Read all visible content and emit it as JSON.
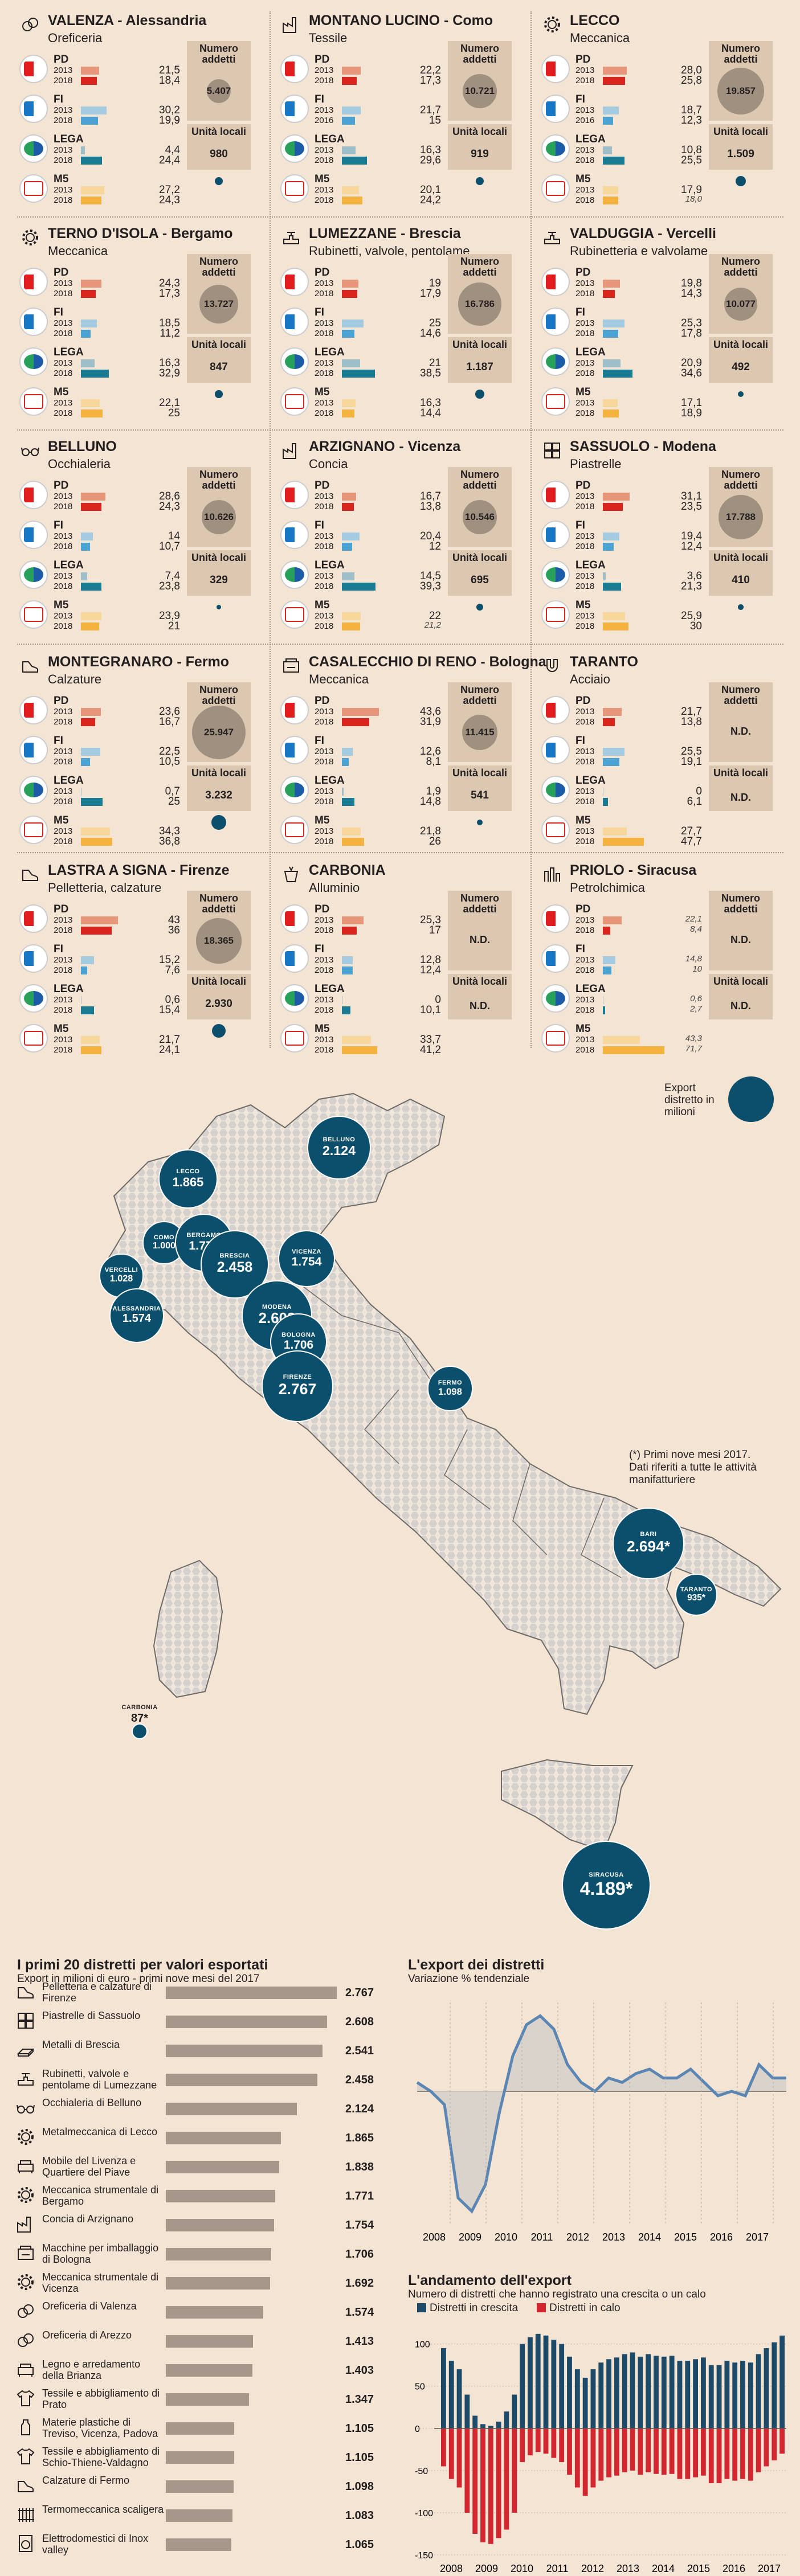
{
  "party_names": {
    "pd": "PD",
    "fi": "FI",
    "lega": "LEGA",
    "ms": "M5"
  },
  "years": [
    "2013",
    "2018"
  ],
  "side_labels": {
    "addetti": "Numero addetti",
    "unita": "Unità locali",
    "nd": "N.D."
  },
  "colors": {
    "pd13": "#e8967a",
    "pd18": "#d9251d",
    "fi13": "#a4cbe0",
    "fi18": "#4aa3d3",
    "lega13": "#9ebfc9",
    "lega18": "#1a7c93",
    "ms13": "#f7d79a",
    "ms18": "#f4b23e",
    "circle": "#a0907f",
    "blue": "#0b4f6c"
  },
  "districts": [
    {
      "icon": "rings-icon",
      "title": "VALENZA - Alessandria",
      "sector": "Oreficeria",
      "pd": [
        "21,5",
        "18,4"
      ],
      "fi": [
        "30,2",
        "19,9"
      ],
      "lega": [
        "4,4",
        "24,4"
      ],
      "ms": [
        "27,2",
        "24,3"
      ],
      "fiy": [
        "2013",
        "2018"
      ],
      "addetti": "5.407",
      "unita": "980",
      "small": []
    },
    {
      "icon": "factory-icon",
      "title": "MONTANO LUCINO - Como",
      "sector": "Tessile",
      "pd": [
        "22,2",
        "17,3"
      ],
      "fi": [
        "21,7",
        "15"
      ],
      "lega": [
        "16,3",
        "29,6"
      ],
      "ms": [
        "20,1",
        "24,2"
      ],
      "fiy": [
        "2013",
        "2016"
      ],
      "addetti": "10.721",
      "unita": "919",
      "small": []
    },
    {
      "icon": "gear-icon",
      "title": "LECCO",
      "sector": "Meccanica",
      "pd": [
        "28,0",
        "25,8"
      ],
      "fi": [
        "18,7",
        "12,3"
      ],
      "lega": [
        "10,8",
        "25,5"
      ],
      "ms": [
        "17,9",
        "18,0"
      ],
      "fiy": [
        "2013",
        "2016"
      ],
      "addetti": "19.857",
      "unita": "1.509",
      "small": [
        "ms18"
      ]
    },
    {
      "icon": "gear-icon",
      "title": "TERNO D'ISOLA - Bergamo",
      "sector": "Meccanica",
      "pd": [
        "24,3",
        "17,3"
      ],
      "fi": [
        "18,5",
        "11,2"
      ],
      "lega": [
        "16,3",
        "32,9"
      ],
      "ms": [
        "22,1",
        "25"
      ],
      "fiy": [
        "2013",
        "2018"
      ],
      "addetti": "13.727",
      "unita": "847",
      "small": []
    },
    {
      "icon": "valve-icon",
      "title": "LUMEZZANE - Brescia",
      "sector": "Rubinetti, valvole, pentolame",
      "pd": [
        "19",
        "17,9"
      ],
      "fi": [
        "25",
        "14,6"
      ],
      "lega": [
        "21",
        "38,5"
      ],
      "ms": [
        "16,3",
        "14,4"
      ],
      "fiy": [
        "2013",
        "2018"
      ],
      "addetti": "16.786",
      "unita": "1.187",
      "small": []
    },
    {
      "icon": "valve-icon",
      "title": "VALDUGGIA - Vercelli",
      "sector": "Rubinetteria e valvolame",
      "pd": [
        "19,8",
        "14,3"
      ],
      "fi": [
        "25,3",
        "17,8"
      ],
      "lega": [
        "20,9",
        "34,6"
      ],
      "ms": [
        "17,1",
        "18,9"
      ],
      "fiy": [
        "2013",
        "2018"
      ],
      "addetti": "10.077",
      "unita": "492",
      "small": []
    },
    {
      "icon": "glasses-icon",
      "title": "BELLUNO",
      "sector": "Occhialeria",
      "pd": [
        "28,6",
        "24,3"
      ],
      "fi": [
        "14",
        "10,7"
      ],
      "lega": [
        "7,4",
        "23,8"
      ],
      "ms": [
        "23,9",
        "21"
      ],
      "fiy": [
        "2013",
        "2018"
      ],
      "addetti": "10.626",
      "unita": "329",
      "small": []
    },
    {
      "icon": "factory-icon",
      "title": "ARZIGNANO - Vicenza",
      "sector": "Concia",
      "pd": [
        "16,7",
        "13,8"
      ],
      "fi": [
        "20,4",
        "12"
      ],
      "lega": [
        "14,5",
        "39,3"
      ],
      "ms": [
        "22",
        "21,2"
      ],
      "fiy": [
        "2013",
        "2018"
      ],
      "addetti": "10.546",
      "unita": "695",
      "small": [
        "ms18"
      ]
    },
    {
      "icon": "tile-icon",
      "title": "SASSUOLO - Modena",
      "sector": "Piastrelle",
      "pd": [
        "31,1",
        "23,5"
      ],
      "fi": [
        "19,4",
        "12,4"
      ],
      "lega": [
        "3,6",
        "21,3"
      ],
      "ms": [
        "25,9",
        "30"
      ],
      "fiy": [
        "2013",
        "2018"
      ],
      "addetti": "17.788",
      "unita": "410",
      "small": []
    },
    {
      "icon": "shoe-icon",
      "title": "MONTEGRANARO - Fermo",
      "sector": "Calzature",
      "pd": [
        "23,6",
        "16,7"
      ],
      "fi": [
        "22,5",
        "10,5"
      ],
      "lega": [
        "0,7",
        "25"
      ],
      "ms": [
        "34,3",
        "36,8"
      ],
      "fiy": [
        "2013",
        "2018"
      ],
      "addetti": "25.947",
      "unita": "3.232",
      "small": []
    },
    {
      "icon": "machine-icon",
      "title": "CASALECCHIO DI RENO - Bologna",
      "sector": "Meccanica",
      "pd": [
        "43,6",
        "31,9"
      ],
      "fi": [
        "12,6",
        "8,1"
      ],
      "lega": [
        "1,9",
        "14,8"
      ],
      "ms": [
        "21,8",
        "26"
      ],
      "fiy": [
        "2013",
        "2018"
      ],
      "addetti": "11.415",
      "unita": "541",
      "small": []
    },
    {
      "icon": "magnet-icon",
      "title": "TARANTO",
      "sector": "Acciaio",
      "pd": [
        "21,7",
        "13,8"
      ],
      "fi": [
        "25,5",
        "19,1"
      ],
      "lega": [
        "0",
        "6,1"
      ],
      "ms": [
        "27,7",
        "47,7"
      ],
      "fiy": [
        "2013",
        "2018"
      ],
      "addetti": "",
      "unita": "",
      "small": []
    },
    {
      "icon": "shoe-icon",
      "title": "LASTRA A SIGNA - Firenze",
      "sector": "Pelletteria, calzature",
      "pd": [
        "43",
        "36"
      ],
      "fi": [
        "15,2",
        "7,6"
      ],
      "lega": [
        "0,6",
        "15,4"
      ],
      "ms": [
        "21,7",
        "24,1"
      ],
      "fiy": [
        "2013",
        "2018"
      ],
      "addetti": "18.365",
      "unita": "2.930",
      "small": []
    },
    {
      "icon": "crucible-icon",
      "title": "CARBONIA",
      "sector": "Alluminio",
      "pd": [
        "25,3",
        "17"
      ],
      "fi": [
        "12,8",
        "12,4"
      ],
      "lega": [
        "0",
        "10,1"
      ],
      "ms": [
        "33,7",
        "41,2"
      ],
      "fiy": [
        "2013",
        "2018"
      ],
      "addetti": "",
      "unita": "",
      "small": []
    },
    {
      "icon": "refinery-icon",
      "title": "PRIOLO - Siracusa",
      "sector": "Petrolchimica",
      "pd": [
        "22,1",
        "8,4"
      ],
      "fi": [
        "14,8",
        "10"
      ],
      "lega": [
        "0,6",
        "2,7"
      ],
      "ms": [
        "43,3",
        "71,7"
      ],
      "fiy": [
        "2013",
        "2018"
      ],
      "addetti": "",
      "unita": "",
      "small": [
        "pd13",
        "pd18",
        "fi13",
        "fi18",
        "lega13",
        "lega18",
        "ms13",
        "ms18"
      ]
    }
  ],
  "map": {
    "legend": "Export distretto in milioni",
    "note": "(*) Primi nove mesi 2017. Dati riferiti a tutte le attività manifatturiere",
    "bubbles": [
      {
        "name": "LECCO",
        "value": "1.865",
        "v": 1865
      },
      {
        "name": "BELLUNO",
        "value": "2.124",
        "v": 2124
      },
      {
        "name": "COMO",
        "value": "1.000",
        "v": 1000
      },
      {
        "name": "BERGAMO",
        "value": "1.771",
        "v": 1771
      },
      {
        "name": "BRESCIA",
        "value": "2.458",
        "v": 2458
      },
      {
        "name": "VICENZA",
        "value": "1.754",
        "v": 1754
      },
      {
        "name": "VERCELLI",
        "value": "1.028",
        "v": 1028
      },
      {
        "name": "ALESSANDRIA",
        "value": "1.574",
        "v": 1574
      },
      {
        "name": "MODENA",
        "value": "2.608",
        "v": 2608
      },
      {
        "name": "BOLOGNA",
        "value": "1.706",
        "v": 1706
      },
      {
        "name": "FIRENZE",
        "value": "2.767",
        "v": 2767
      },
      {
        "name": "FERMO",
        "value": "1.098",
        "v": 1098
      },
      {
        "name": "BARI",
        "value": "2.694*",
        "v": 2694
      },
      {
        "name": "TARANTO",
        "value": "935*",
        "v": 935
      },
      {
        "name": "CARBONIA",
        "value": "87*",
        "v": 87
      },
      {
        "name": "SIRACUSA",
        "value": "4.189*",
        "v": 4189
      }
    ]
  },
  "top20": {
    "title": "I primi 20 distretti per valori esportati",
    "subtitle": "Export in milioni di euro - primi nove mesi del 2017",
    "items": [
      {
        "name": "Pelletteria e calzature di Firenze",
        "value": "2.767",
        "v": 2767,
        "icon": "shoe-icon"
      },
      {
        "name": "Piastrelle di Sassuolo",
        "value": "2.608",
        "v": 2608,
        "icon": "tile-icon"
      },
      {
        "name": "Metalli di Brescia",
        "value": "2.541",
        "v": 2541,
        "icon": "metal-icon"
      },
      {
        "name": "Rubinetti, valvole e pentolame di Lumezzane",
        "value": "2.458",
        "v": 2458,
        "icon": "valve-icon"
      },
      {
        "name": "Occhialeria di Belluno",
        "value": "2.124",
        "v": 2124,
        "icon": "glasses-icon"
      },
      {
        "name": "Metalmeccanica di Lecco",
        "value": "1.865",
        "v": 1865,
        "icon": "gear-icon"
      },
      {
        "name": "Mobile del Livenza e Quartiere del Piave",
        "value": "1.838",
        "v": 1838,
        "icon": "sofa-icon"
      },
      {
        "name": "Meccanica strumentale di Bergamo",
        "value": "1.771",
        "v": 1771,
        "icon": "gear-icon"
      },
      {
        "name": "Concia di Arzignano",
        "value": "1.754",
        "v": 1754,
        "icon": "factory-icon"
      },
      {
        "name": "Macchine per imballaggio di Bologna",
        "value": "1.706",
        "v": 1706,
        "icon": "machine-icon"
      },
      {
        "name": "Meccanica strumentale di Vicenza",
        "value": "1.692",
        "v": 1692,
        "icon": "gear-icon"
      },
      {
        "name": "Oreficeria di Valenza",
        "value": "1.574",
        "v": 1574,
        "icon": "rings-icon"
      },
      {
        "name": "Oreficeria di Arezzo",
        "value": "1.413",
        "v": 1413,
        "icon": "rings-icon"
      },
      {
        "name": "Legno e arredamento della Brianza",
        "value": "1.403",
        "v": 1403,
        "icon": "sofa-icon"
      },
      {
        "name": "Tessile e abbigliamento di Prato",
        "value": "1.347",
        "v": 1347,
        "icon": "shirt-icon"
      },
      {
        "name": "Materie plastiche di Treviso, Vicenza, Padova",
        "value": "1.105",
        "v": 1105,
        "icon": "plastic-icon"
      },
      {
        "name": "Tessile e abbigliamento di Schio-Thiene-Valdagno",
        "value": "1.105",
        "v": 1105,
        "icon": "shirt-icon"
      },
      {
        "name": "Calzature di Fermo",
        "value": "1.098",
        "v": 1098,
        "icon": "shoe-icon"
      },
      {
        "name": "Termomeccanica scaligera",
        "value": "1.083",
        "v": 1083,
        "icon": "radiator-icon"
      },
      {
        "name": "Elettrodomestici di Inox valley",
        "value": "1.065",
        "v": 1065,
        "icon": "appliance-icon"
      }
    ]
  },
  "chart_data": [
    {
      "type": "line",
      "title": "L'export dei distretti",
      "subtitle": "Variazione % tendenziale",
      "x_labels": [
        "2008",
        "2009",
        "2010",
        "2011",
        "2012",
        "2013",
        "2014",
        "2015",
        "2016",
        "2017"
      ],
      "ylim": [
        -30,
        20
      ],
      "values": [
        2,
        0,
        -3,
        -24,
        -27,
        -21,
        -5,
        8,
        15,
        17,
        14,
        6,
        2,
        0,
        3,
        2,
        4,
        5,
        3,
        3,
        5,
        2,
        -1,
        0,
        -1,
        6,
        3,
        3
      ]
    },
    {
      "type": "bar",
      "title": "L'andamento dell'export",
      "subtitle": "Numero di distretti che hanno registrato una crescita o un calo",
      "x_labels": [
        "2008",
        "2009",
        "2010",
        "2011",
        "2012",
        "2013",
        "2014",
        "2015",
        "2016",
        "2017"
      ],
      "y_ticks": [
        "100",
        "50",
        "0",
        "-50",
        "-100",
        "-150"
      ],
      "ylim": [
        -150,
        120
      ],
      "series": [
        {
          "name": "Distretti in crescita",
          "color": "#1c4a68",
          "values": [
            95,
            80,
            70,
            40,
            15,
            5,
            3,
            8,
            20,
            40,
            100,
            108,
            112,
            110,
            105,
            100,
            85,
            70,
            60,
            70,
            78,
            82,
            84,
            88,
            90,
            85,
            88,
            86,
            85,
            86,
            80,
            80,
            82,
            84,
            75,
            75,
            80,
            78,
            80,
            78,
            88,
            95,
            102,
            110
          ]
        },
        {
          "name": "Distretti in calo",
          "color": "#d22630",
          "values": [
            -45,
            -60,
            -70,
            -100,
            -125,
            -135,
            -137,
            -130,
            -120,
            -100,
            -40,
            -32,
            -28,
            -30,
            -35,
            -40,
            -55,
            -70,
            -80,
            -70,
            -62,
            -58,
            -56,
            -52,
            -50,
            -55,
            -52,
            -54,
            -55,
            -54,
            -60,
            -60,
            -58,
            -56,
            -65,
            -65,
            -60,
            -62,
            -60,
            -62,
            -52,
            -45,
            -38,
            -30
          ]
        }
      ]
    }
  ]
}
